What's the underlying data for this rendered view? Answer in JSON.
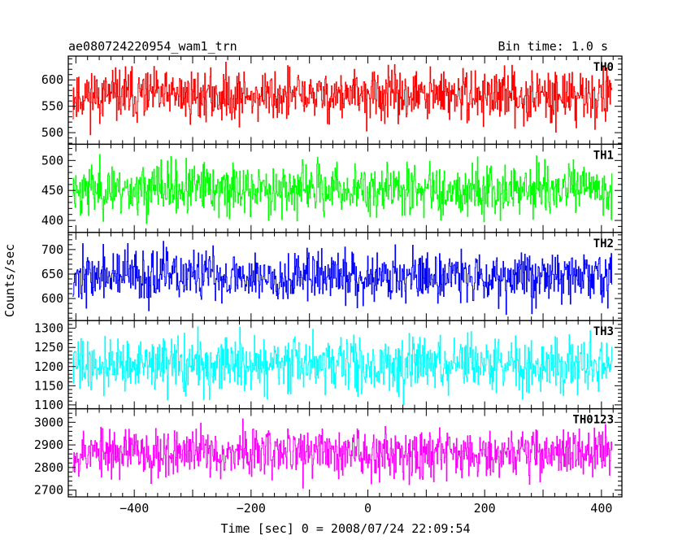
{
  "chart_data": {
    "type": "line",
    "title_left": "ae080724220954_wam1_trn",
    "title_right": "Bin time: 1.0 s",
    "xlabel": "Time [sec] 0 = 2008/07/24 22:09:54",
    "ylabel": "Counts/sec",
    "xlim": [
      -513,
      435
    ],
    "x_ticks": [
      -400,
      -200,
      0,
      200,
      400
    ],
    "x_range_data": [
      -505,
      418
    ],
    "bin_time": 1.0,
    "panels": [
      {
        "name": "TH0",
        "color": "#ff0000",
        "ylim": [
          478,
          645
        ],
        "y_ticks": [
          500,
          550,
          600
        ],
        "mean": 570,
        "noise": 26,
        "seed": 11
      },
      {
        "name": "TH1",
        "color": "#00ff00",
        "ylim": [
          380,
          527
        ],
        "y_ticks": [
          400,
          450,
          500
        ],
        "mean": 452,
        "noise": 23,
        "seed": 23
      },
      {
        "name": "TH2",
        "color": "#0000ff",
        "ylim": [
          555,
          735
        ],
        "y_ticks": [
          600,
          650,
          700
        ],
        "mean": 646,
        "noise": 28,
        "seed": 37
      },
      {
        "name": "TH3",
        "color": "#00ffff",
        "ylim": [
          1090,
          1320
        ],
        "y_ticks": [
          1100,
          1150,
          1200,
          1250,
          1300
        ],
        "mean": 1205,
        "noise": 38,
        "seed": 41
      },
      {
        "name": "TH0123",
        "color": "#ff00ff",
        "ylim": [
          2670,
          3060
        ],
        "y_ticks": [
          2700,
          2800,
          2900,
          3000
        ],
        "mean": 2868,
        "noise": 58,
        "seed": 53
      }
    ]
  }
}
